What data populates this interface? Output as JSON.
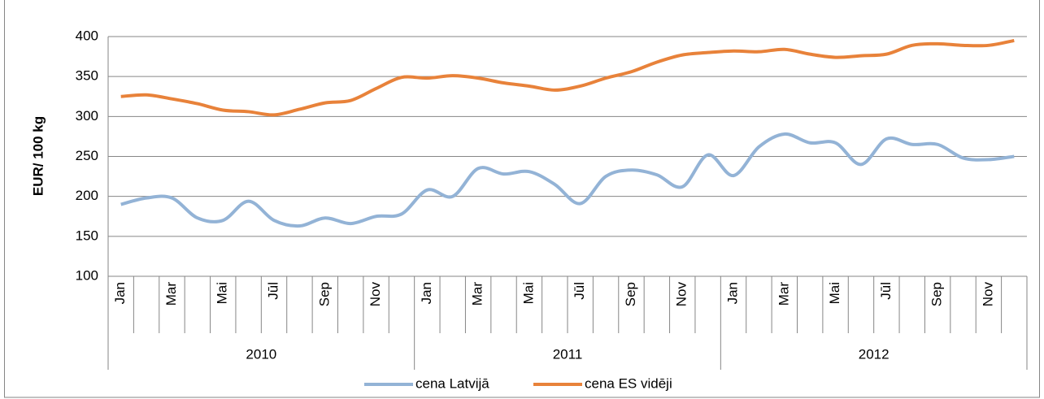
{
  "chart_data": {
    "type": "line",
    "ylabel": "EUR/ 100 kg",
    "categories": [
      "Jan",
      null,
      "Mar",
      null,
      "Mai",
      null,
      "Jūl",
      null,
      "Sep",
      null,
      "Nov",
      null,
      "Jan",
      null,
      "Mar",
      null,
      "Mai",
      null,
      "Jūl",
      null,
      "Sep",
      null,
      "Nov",
      null,
      "Jan",
      null,
      "Mar",
      null,
      "Mai",
      null,
      "Jūl",
      null,
      "Sep",
      null,
      "Nov",
      null
    ],
    "category_groups": [
      "2010",
      "2011",
      "2012"
    ],
    "series": [
      {
        "name": "cena Latvijā",
        "color": "#93b3d6",
        "values": [
          190,
          198,
          198,
          173,
          170,
          194,
          170,
          163,
          173,
          166,
          175,
          178,
          208,
          200,
          235,
          228,
          231,
          215,
          191,
          225,
          233,
          227,
          212,
          252,
          226,
          262,
          278,
          267,
          267,
          240,
          272,
          265,
          265,
          248,
          246,
          250
        ]
      },
      {
        "name": "cena ES vidēji",
        "color": "#e8823a",
        "values": [
          325,
          327,
          322,
          316,
          308,
          306,
          302,
          309,
          317,
          320,
          335,
          349,
          348,
          351,
          348,
          342,
          338,
          333,
          338,
          348,
          356,
          368,
          377,
          380,
          382,
          381,
          384,
          378,
          374,
          376,
          378,
          389,
          391,
          389,
          389,
          395
        ]
      }
    ],
    "ylim": [
      100,
      400
    ],
    "yticks": [
      100,
      150,
      200,
      250,
      300,
      350,
      400
    ],
    "grid": true,
    "legend": "bottom"
  }
}
